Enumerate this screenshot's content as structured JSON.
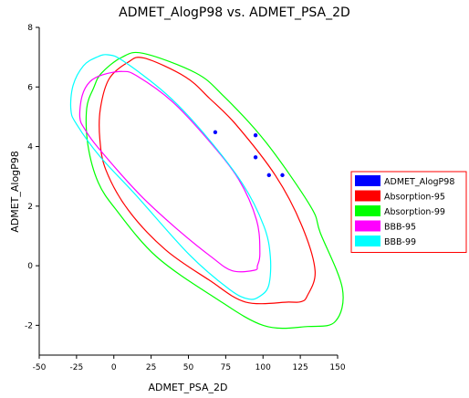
{
  "chart_data": {
    "type": "scatter",
    "title": "ADMET_AlogP98 vs. ADMET_PSA_2D",
    "xlabel": "ADMET_PSA_2D",
    "ylabel": "ADMET_AlogP98",
    "xlim": [
      -50,
      150
    ],
    "ylim": [
      -3,
      8
    ],
    "x_ticks": [
      -50,
      -25,
      0,
      25,
      50,
      75,
      100,
      125,
      150
    ],
    "y_ticks": [
      -2,
      0,
      2,
      4,
      6,
      8
    ],
    "grid": false,
    "legend_position": "right",
    "points": {
      "name": "ADMET_AlogP98",
      "color": "#0000ff",
      "x": [
        68,
        95,
        95,
        104,
        113
      ],
      "y": [
        4.48,
        4.38,
        3.64,
        3.04,
        3.04
      ]
    },
    "ellipses": [
      {
        "name": "Absorption-95",
        "color": "#ff0000",
        "points": [
          [
            -9.4,
            4.26
          ],
          [
            -9.0,
            5.27
          ],
          [
            -3.2,
            6.27
          ],
          [
            9.2,
            6.82
          ],
          [
            20.3,
            6.97
          ],
          [
            47.9,
            6.34
          ],
          [
            64.3,
            5.61
          ],
          [
            82.0,
            4.73
          ],
          [
            108.3,
            3.03
          ],
          [
            125.8,
            1.37
          ],
          [
            134.9,
            -0.17
          ],
          [
            129.6,
            -1.02
          ],
          [
            125.3,
            -1.21
          ],
          [
            117.2,
            -1.22
          ],
          [
            88.3,
            -1.22
          ],
          [
            63.9,
            -0.48
          ],
          [
            34.8,
            0.53
          ],
          [
            9.8,
            1.86
          ],
          [
            -5.3,
            3.21
          ],
          [
            -9.4,
            4.26
          ]
        ]
      },
      {
        "name": "Absorption-99",
        "color": "#00ff00",
        "points": [
          [
            -17.4,
            4.06
          ],
          [
            -18.2,
            5.28
          ],
          [
            -13.4,
            5.98
          ],
          [
            -8.4,
            6.46
          ],
          [
            5.1,
            6.99
          ],
          [
            19.8,
            7.13
          ],
          [
            54.9,
            6.47
          ],
          [
            73.5,
            5.7
          ],
          [
            101.7,
            4.16
          ],
          [
            131.8,
            2.0
          ],
          [
            138.5,
            1.09
          ],
          [
            153.2,
            -0.76
          ],
          [
            148.5,
            -1.87
          ],
          [
            130.0,
            -2.04
          ],
          [
            100.6,
            -2.01
          ],
          [
            66.4,
            -1.03
          ],
          [
            28.5,
            0.31
          ],
          [
            2.1,
            1.84
          ],
          [
            -10.5,
            2.8
          ],
          [
            -17.4,
            4.06
          ]
        ]
      },
      {
        "name": "BBB-95",
        "color": "#ff00ff",
        "points": [
          [
            -22.8,
            4.98
          ],
          [
            -21.2,
            5.71
          ],
          [
            -16.0,
            6.18
          ],
          [
            -7.5,
            6.41
          ],
          [
            5.7,
            6.52
          ],
          [
            15.2,
            6.38
          ],
          [
            39.2,
            5.51
          ],
          [
            63.1,
            4.23
          ],
          [
            83.5,
            2.91
          ],
          [
            95.7,
            1.53
          ],
          [
            97.9,
            0.43
          ],
          [
            96.3,
            0.01
          ],
          [
            94.4,
            -0.15
          ],
          [
            79.3,
            -0.17
          ],
          [
            65.3,
            0.3
          ],
          [
            43.6,
            1.18
          ],
          [
            17.5,
            2.38
          ],
          [
            -10.5,
            3.96
          ],
          [
            -19.4,
            4.58
          ],
          [
            -22.8,
            4.98
          ]
        ]
      },
      {
        "name": "BBB-99",
        "color": "#00ffff",
        "points": [
          [
            -28.8,
            5.24
          ],
          [
            -27.3,
            6.05
          ],
          [
            -20.4,
            6.71
          ],
          [
            -11.4,
            7.0
          ],
          [
            -4.0,
            7.08
          ],
          [
            6.4,
            6.87
          ],
          [
            34.8,
            5.78
          ],
          [
            58.6,
            4.54
          ],
          [
            85.9,
            2.78
          ],
          [
            100.6,
            1.33
          ],
          [
            104.9,
            0.3
          ],
          [
            103.9,
            -0.65
          ],
          [
            98.0,
            -1.02
          ],
          [
            90.3,
            -1.12
          ],
          [
            77.4,
            -0.79
          ],
          [
            50.4,
            0.38
          ],
          [
            14.8,
            2.37
          ],
          [
            -9.4,
            3.67
          ],
          [
            -25.0,
            4.75
          ],
          [
            -28.8,
            5.24
          ]
        ]
      }
    ],
    "legend": [
      {
        "label": "ADMET_AlogP98",
        "color": "#0000ff"
      },
      {
        "label": "Absorption-95",
        "color": "#ff0000"
      },
      {
        "label": "Absorption-99",
        "color": "#00ff00"
      },
      {
        "label": "BBB-95",
        "color": "#ff00ff"
      },
      {
        "label": "BBB-99",
        "color": "#00ffff"
      }
    ]
  }
}
